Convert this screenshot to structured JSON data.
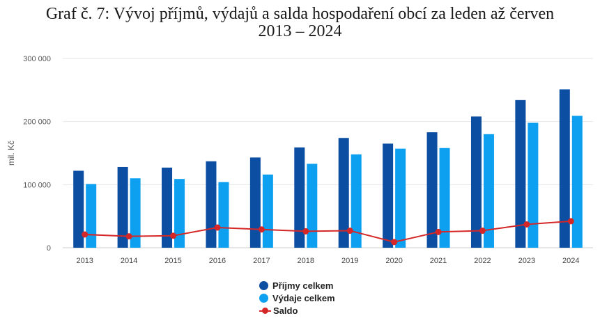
{
  "title": {
    "line1": "Graf č. 7: Vývoj příjmů, výdajů a salda hospodaření obcí za leden až červen",
    "line2": "2013 – 2024"
  },
  "chart_data": {
    "type": "bar",
    "categories": [
      "2013",
      "2014",
      "2015",
      "2016",
      "2017",
      "2018",
      "2019",
      "2020",
      "2021",
      "2022",
      "2023",
      "2024"
    ],
    "series": [
      {
        "name": "Příjmy celkem",
        "type": "bar",
        "color": "#0b4ea2",
        "values": [
          122000,
          128000,
          127000,
          137000,
          143000,
          159000,
          174000,
          165000,
          183000,
          208000,
          234000,
          251000
        ]
      },
      {
        "name": "Výdaje celkem",
        "type": "bar",
        "color": "#0ea0f0",
        "values": [
          101000,
          110000,
          109000,
          104000,
          116000,
          133000,
          148000,
          157000,
          158000,
          180000,
          198000,
          209000
        ]
      },
      {
        "name": "Saldo",
        "type": "line",
        "color": "#d62728",
        "values": [
          21000,
          18000,
          19000,
          32000,
          29000,
          26000,
          27000,
          9000,
          25000,
          27000,
          37000,
          42000
        ]
      }
    ],
    "ylabel": "mil. Kč",
    "ylim": [
      0,
      300000
    ],
    "yticks": [
      0,
      100000,
      200000,
      300000
    ],
    "ytick_labels": [
      "0",
      "100 000",
      "200 000",
      "300 000"
    ],
    "grid": true,
    "legend_position": "bottom-center"
  }
}
